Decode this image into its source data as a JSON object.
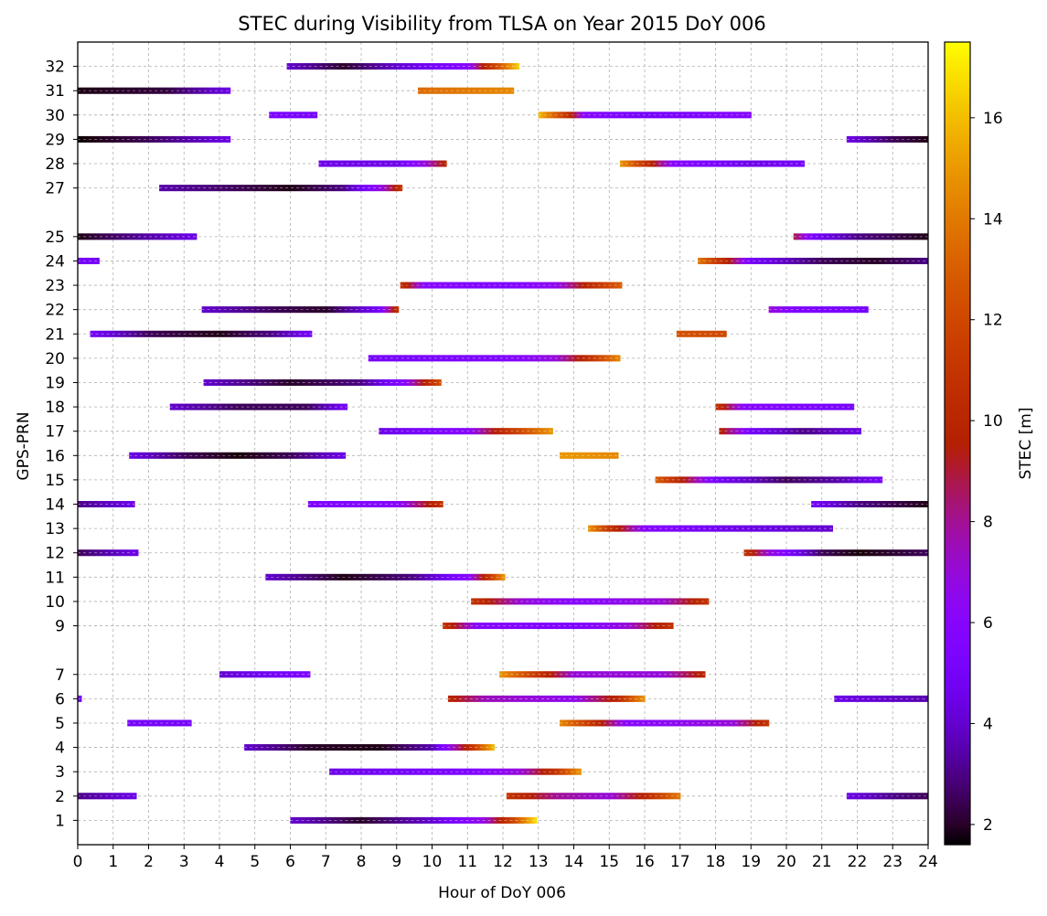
{
  "chart_data": {
    "type": "gantt-heat",
    "title": "STEC during Visibility from TLSA on Year 2015 DoY 006",
    "xlabel": "Hour of DoY 006",
    "ylabel": "GPS-PRN",
    "colorbar_label": "STEC [m]",
    "xlim": [
      0,
      24
    ],
    "ylim": [
      0,
      33
    ],
    "clim": [
      1.6,
      17.5
    ],
    "colormap": "gnuplot",
    "grid": true,
    "x_ticks": [
      "0",
      "1",
      "2",
      "3",
      "4",
      "5",
      "6",
      "7",
      "8",
      "9",
      "10",
      "11",
      "12",
      "13",
      "14",
      "15",
      "16",
      "17",
      "18",
      "19",
      "20",
      "21",
      "22",
      "23",
      "24"
    ],
    "y_ticks": [
      "1",
      "2",
      "3",
      "4",
      "5",
      "6",
      "7",
      "9",
      "10",
      "11",
      "12",
      "13",
      "14",
      "15",
      "16",
      "17",
      "18",
      "19",
      "20",
      "21",
      "22",
      "23",
      "24",
      "25",
      "27",
      "28",
      "29",
      "30",
      "31",
      "32"
    ],
    "colorbar_ticks": [
      "2",
      "4",
      "6",
      "8",
      "10",
      "12",
      "14",
      "16"
    ],
    "passes": [
      {
        "prn": 32,
        "start": 5.9,
        "end": 12.45,
        "stec": [
          [
            5.9,
            4.0
          ],
          [
            7.5,
            2.0
          ],
          [
            9.0,
            4.0
          ],
          [
            11.0,
            6.0
          ],
          [
            11.5,
            10.0
          ],
          [
            12.45,
            16.5
          ]
        ]
      },
      {
        "prn": 31,
        "start": 0.0,
        "end": 4.3,
        "stec": [
          [
            0.0,
            1.8
          ],
          [
            2.5,
            2.2
          ],
          [
            4.3,
            4.5
          ]
        ]
      },
      {
        "prn": 31,
        "start": 9.6,
        "end": 12.3,
        "stec": [
          [
            9.6,
            13.5
          ],
          [
            12.3,
            14.5
          ]
        ]
      },
      {
        "prn": 30,
        "start": 5.4,
        "end": 6.75,
        "stec": [
          [
            5.4,
            5.5
          ],
          [
            6.75,
            5.0
          ]
        ]
      },
      {
        "prn": 30,
        "start": 13.0,
        "end": 19.0,
        "stec": [
          [
            13.0,
            16.0
          ],
          [
            13.8,
            11.0
          ],
          [
            14.3,
            6.0
          ],
          [
            16.0,
            5.0
          ],
          [
            19.0,
            6.0
          ]
        ]
      },
      {
        "prn": 29,
        "start": 0.0,
        "end": 4.3,
        "stec": [
          [
            0.0,
            1.6
          ],
          [
            2.0,
            2.5
          ],
          [
            4.3,
            4.5
          ]
        ]
      },
      {
        "prn": 29,
        "start": 21.7,
        "end": 24.0,
        "stec": [
          [
            21.7,
            4.5
          ],
          [
            23.0,
            2.5
          ],
          [
            24.0,
            1.8
          ]
        ]
      },
      {
        "prn": 28,
        "start": 6.8,
        "end": 10.4,
        "stec": [
          [
            6.8,
            4.5
          ],
          [
            9.0,
            4.5
          ],
          [
            9.8,
            7.0
          ],
          [
            10.4,
            10.0
          ]
        ]
      },
      {
        "prn": 28,
        "start": 15.3,
        "end": 20.5,
        "stec": [
          [
            15.3,
            15.0
          ],
          [
            16.0,
            11.0
          ],
          [
            16.8,
            6.0
          ],
          [
            19.0,
            4.5
          ],
          [
            20.5,
            5.0
          ]
        ]
      },
      {
        "prn": 27,
        "start": 2.3,
        "end": 9.15,
        "stec": [
          [
            2.3,
            3.5
          ],
          [
            4.5,
            2.5
          ],
          [
            6.0,
            1.8
          ],
          [
            7.5,
            3.0
          ],
          [
            8.6,
            7.0
          ],
          [
            9.15,
            11.0
          ]
        ]
      },
      {
        "prn": 25,
        "start": 0.0,
        "end": 3.35,
        "stec": [
          [
            0.0,
            1.8
          ],
          [
            1.5,
            3.0
          ],
          [
            3.35,
            4.5
          ]
        ]
      },
      {
        "prn": 25,
        "start": 20.2,
        "end": 24.0,
        "stec": [
          [
            20.2,
            9.0
          ],
          [
            20.8,
            5.0
          ],
          [
            22.0,
            3.0
          ],
          [
            24.0,
            1.8
          ]
        ]
      },
      {
        "prn": 24,
        "start": 0.0,
        "end": 0.6,
        "stec": [
          [
            0.0,
            5.0
          ],
          [
            0.6,
            5.0
          ]
        ]
      },
      {
        "prn": 24,
        "start": 17.5,
        "end": 24.0,
        "stec": [
          [
            17.5,
            14.0
          ],
          [
            18.3,
            10.0
          ],
          [
            19.0,
            5.0
          ],
          [
            21.0,
            2.5
          ],
          [
            22.5,
            2.0
          ],
          [
            24.0,
            3.0
          ]
        ]
      },
      {
        "prn": 23,
        "start": 9.1,
        "end": 15.35,
        "stec": [
          [
            9.1,
            11.0
          ],
          [
            9.8,
            6.0
          ],
          [
            12.0,
            5.5
          ],
          [
            13.5,
            6.5
          ],
          [
            14.5,
            10.5
          ],
          [
            15.35,
            13.0
          ]
        ]
      },
      {
        "prn": 22,
        "start": 3.5,
        "end": 9.05,
        "stec": [
          [
            3.5,
            4.0
          ],
          [
            5.5,
            2.5
          ],
          [
            7.0,
            2.0
          ],
          [
            8.5,
            5.0
          ],
          [
            9.05,
            11.0
          ]
        ]
      },
      {
        "prn": 22,
        "start": 19.5,
        "end": 22.3,
        "stec": [
          [
            19.5,
            7.0
          ],
          [
            20.3,
            5.5
          ],
          [
            22.3,
            5.0
          ]
        ]
      },
      {
        "prn": 21,
        "start": 0.35,
        "end": 6.6,
        "stec": [
          [
            0.35,
            5.0
          ],
          [
            2.0,
            2.5
          ],
          [
            4.0,
            1.8
          ],
          [
            5.5,
            3.0
          ],
          [
            6.6,
            5.0
          ]
        ]
      },
      {
        "prn": 21,
        "start": 16.9,
        "end": 18.3,
        "stec": [
          [
            16.9,
            12.5
          ],
          [
            18.3,
            12.0
          ]
        ]
      },
      {
        "prn": 20,
        "start": 8.2,
        "end": 15.3,
        "stec": [
          [
            8.2,
            5.0
          ],
          [
            12.0,
            5.5
          ],
          [
            13.5,
            7.0
          ],
          [
            14.5,
            11.0
          ],
          [
            15.3,
            14.5
          ]
        ]
      },
      {
        "prn": 19,
        "start": 3.55,
        "end": 10.25,
        "stec": [
          [
            3.55,
            4.0
          ],
          [
            6.0,
            2.0
          ],
          [
            8.0,
            3.0
          ],
          [
            9.2,
            6.0
          ],
          [
            10.25,
            12.5
          ]
        ]
      },
      {
        "prn": 18,
        "start": 2.6,
        "end": 7.6,
        "stec": [
          [
            2.6,
            4.0
          ],
          [
            4.5,
            2.5
          ],
          [
            6.5,
            2.5
          ],
          [
            7.6,
            5.0
          ]
        ]
      },
      {
        "prn": 18,
        "start": 18.0,
        "end": 21.9,
        "stec": [
          [
            18.0,
            11.0
          ],
          [
            18.8,
            6.0
          ],
          [
            21.9,
            5.0
          ]
        ]
      },
      {
        "prn": 17,
        "start": 8.5,
        "end": 13.4,
        "stec": [
          [
            8.5,
            4.5
          ],
          [
            11.0,
            6.0
          ],
          [
            12.0,
            10.5
          ],
          [
            13.4,
            15.0
          ]
        ]
      },
      {
        "prn": 17,
        "start": 18.1,
        "end": 22.1,
        "stec": [
          [
            18.1,
            10.0
          ],
          [
            19.0,
            5.0
          ],
          [
            20.5,
            3.0
          ],
          [
            22.1,
            4.5
          ]
        ]
      },
      {
        "prn": 16,
        "start": 1.45,
        "end": 7.55,
        "stec": [
          [
            1.45,
            4.5
          ],
          [
            3.0,
            2.5
          ],
          [
            4.5,
            1.7
          ],
          [
            6.0,
            2.5
          ],
          [
            7.55,
            4.5
          ]
        ]
      },
      {
        "prn": 16,
        "start": 13.6,
        "end": 15.25,
        "stec": [
          [
            13.6,
            15.0
          ],
          [
            15.25,
            14.5
          ]
        ]
      },
      {
        "prn": 15,
        "start": 16.3,
        "end": 22.7,
        "stec": [
          [
            16.3,
            13.0
          ],
          [
            17.0,
            10.0
          ],
          [
            18.0,
            5.0
          ],
          [
            20.0,
            2.5
          ],
          [
            21.5,
            3.5
          ],
          [
            22.7,
            5.0
          ]
        ]
      },
      {
        "prn": 14,
        "start": 0.0,
        "end": 1.6,
        "stec": [
          [
            0.0,
            3.0
          ],
          [
            1.6,
            4.5
          ]
        ]
      },
      {
        "prn": 14,
        "start": 6.5,
        "end": 10.3,
        "stec": [
          [
            6.5,
            5.5
          ],
          [
            9.0,
            6.0
          ],
          [
            10.3,
            11.0
          ]
        ]
      },
      {
        "prn": 14,
        "start": 20.7,
        "end": 24.0,
        "stec": [
          [
            20.7,
            5.0
          ],
          [
            22.0,
            3.0
          ],
          [
            24.0,
            1.8
          ]
        ]
      },
      {
        "prn": 13,
        "start": 14.4,
        "end": 21.3,
        "stec": [
          [
            14.4,
            15.0
          ],
          [
            15.0,
            11.0
          ],
          [
            16.0,
            6.0
          ],
          [
            18.5,
            4.5
          ],
          [
            21.3,
            4.0
          ]
        ]
      },
      {
        "prn": 12,
        "start": 0.0,
        "end": 1.7,
        "stec": [
          [
            0.0,
            2.5
          ],
          [
            1.7,
            4.5
          ]
        ]
      },
      {
        "prn": 12,
        "start": 18.8,
        "end": 24.0,
        "stec": [
          [
            18.8,
            11.0
          ],
          [
            19.5,
            7.0
          ],
          [
            21.0,
            2.5
          ],
          [
            22.0,
            1.7
          ],
          [
            24.0,
            2.5
          ]
        ]
      },
      {
        "prn": 11,
        "start": 5.3,
        "end": 12.05,
        "stec": [
          [
            5.3,
            4.0
          ],
          [
            7.5,
            1.8
          ],
          [
            9.5,
            3.0
          ],
          [
            11.0,
            6.0
          ],
          [
            11.5,
            10.0
          ],
          [
            12.05,
            15.0
          ]
        ]
      },
      {
        "prn": 10,
        "start": 11.1,
        "end": 17.8,
        "stec": [
          [
            11.1,
            11.0
          ],
          [
            12.5,
            7.0
          ],
          [
            14.0,
            6.0
          ],
          [
            16.5,
            7.0
          ],
          [
            17.8,
            11.0
          ]
        ]
      },
      {
        "prn": 9,
        "start": 10.3,
        "end": 16.8,
        "stec": [
          [
            10.3,
            11.0
          ],
          [
            11.3,
            6.0
          ],
          [
            14.0,
            5.5
          ],
          [
            15.5,
            7.0
          ],
          [
            16.8,
            11.0
          ]
        ]
      },
      {
        "prn": 7,
        "start": 4.0,
        "end": 6.55,
        "stec": [
          [
            4.0,
            4.0
          ],
          [
            6.55,
            5.5
          ]
        ]
      },
      {
        "prn": 7,
        "start": 11.9,
        "end": 17.7,
        "stec": [
          [
            11.9,
            15.0
          ],
          [
            13.0,
            11.0
          ],
          [
            14.0,
            7.0
          ],
          [
            16.5,
            7.0
          ],
          [
            17.7,
            10.0
          ]
        ]
      },
      {
        "prn": 6,
        "start": 0.0,
        "end": 0.1,
        "stec": [
          [
            0.0,
            5.0
          ],
          [
            0.1,
            5.0
          ]
        ]
      },
      {
        "prn": 6,
        "start": 10.45,
        "end": 16.0,
        "stec": [
          [
            10.45,
            10.0
          ],
          [
            11.5,
            7.5
          ],
          [
            14.0,
            6.5
          ],
          [
            15.2,
            10.0
          ],
          [
            16.0,
            15.0
          ]
        ]
      },
      {
        "prn": 6,
        "start": 21.35,
        "end": 24.0,
        "stec": [
          [
            21.35,
            4.5
          ],
          [
            24.0,
            3.5
          ]
        ]
      },
      {
        "prn": 5,
        "start": 1.4,
        "end": 3.2,
        "stec": [
          [
            1.4,
            5.0
          ],
          [
            3.2,
            5.0
          ]
        ]
      },
      {
        "prn": 5,
        "start": 13.6,
        "end": 19.5,
        "stec": [
          [
            13.6,
            14.5
          ],
          [
            14.5,
            11.0
          ],
          [
            15.5,
            6.0
          ],
          [
            18.5,
            7.0
          ],
          [
            19.5,
            11.0
          ]
        ]
      },
      {
        "prn": 4,
        "start": 4.7,
        "end": 11.75,
        "stec": [
          [
            4.7,
            4.0
          ],
          [
            6.5,
            2.0
          ],
          [
            8.5,
            1.8
          ],
          [
            10.0,
            3.5
          ],
          [
            11.0,
            10.0
          ],
          [
            11.75,
            16.0
          ]
        ]
      },
      {
        "prn": 3,
        "start": 7.1,
        "end": 14.2,
        "stec": [
          [
            7.1,
            4.5
          ],
          [
            11.0,
            5.5
          ],
          [
            12.5,
            7.0
          ],
          [
            13.5,
            11.0
          ],
          [
            14.2,
            15.0
          ]
        ]
      },
      {
        "prn": 2,
        "start": 0.0,
        "end": 1.65,
        "stec": [
          [
            0.0,
            3.0
          ],
          [
            1.65,
            4.5
          ]
        ]
      },
      {
        "prn": 2,
        "start": 12.1,
        "end": 17.0,
        "stec": [
          [
            12.1,
            11.0
          ],
          [
            13.5,
            8.0
          ],
          [
            15.0,
            7.0
          ],
          [
            16.0,
            10.0
          ],
          [
            17.0,
            14.0
          ]
        ]
      },
      {
        "prn": 2,
        "start": 21.7,
        "end": 24.0,
        "stec": [
          [
            21.7,
            4.5
          ],
          [
            23.0,
            3.0
          ],
          [
            24.0,
            2.5
          ]
        ]
      },
      {
        "prn": 1,
        "start": 6.0,
        "end": 12.95,
        "stec": [
          [
            6.0,
            4.0
          ],
          [
            8.0,
            2.0
          ],
          [
            10.0,
            4.0
          ],
          [
            11.5,
            7.0
          ],
          [
            12.3,
            12.0
          ],
          [
            12.95,
            17.0
          ]
        ]
      }
    ]
  }
}
